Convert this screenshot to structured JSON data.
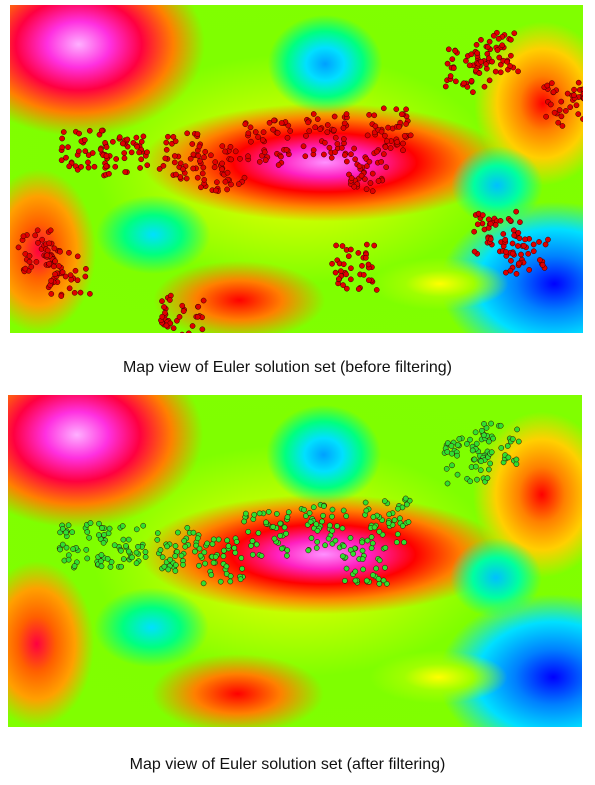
{
  "figures": [
    {
      "caption": "Map view of Euler solution set (before filtering)"
    },
    {
      "caption": "Map view of Euler solution set (after filtering)"
    }
  ]
}
